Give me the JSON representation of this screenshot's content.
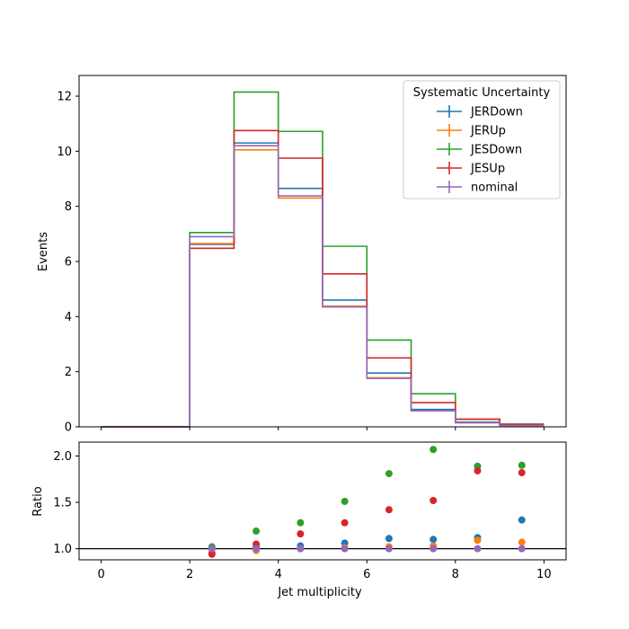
{
  "chart_data": [
    {
      "type": "step",
      "ylabel": "Events",
      "xlim": [
        -0.5,
        10.5
      ],
      "ylim": [
        0,
        12.75
      ],
      "yticks": [
        0,
        2,
        4,
        6,
        8,
        10,
        12
      ],
      "bin_edges": [
        0,
        1,
        2,
        3,
        4,
        5,
        6,
        7,
        8,
        9,
        10
      ],
      "legend": {
        "title": "Systematic Uncertainty",
        "placement": "upper right"
      },
      "series": [
        {
          "name": "JERDown",
          "color": "#1f77b4",
          "values": [
            0,
            0,
            6.62,
            10.3,
            8.65,
            4.6,
            1.95,
            0.63,
            0.17,
            0.07
          ]
        },
        {
          "name": "JERUp",
          "color": "#ff7f0e",
          "values": [
            0,
            0,
            6.65,
            10.05,
            8.3,
            4.38,
            1.78,
            0.58,
            0.15,
            0.05
          ]
        },
        {
          "name": "JESDown",
          "color": "#2ca02c",
          "values": [
            0,
            0,
            7.05,
            12.15,
            10.72,
            6.55,
            3.15,
            1.2,
            0.27,
            0.1
          ]
        },
        {
          "name": "JESUp",
          "color": "#d62728",
          "values": [
            0,
            0,
            6.48,
            10.75,
            9.75,
            5.55,
            2.5,
            0.88,
            0.28,
            0.09
          ]
        },
        {
          "name": "nominal",
          "color": "#9467bd",
          "values": [
            0,
            0,
            6.9,
            10.2,
            8.38,
            4.35,
            1.76,
            0.58,
            0.15,
            0.05
          ]
        }
      ]
    },
    {
      "type": "scatter",
      "xlabel": "Jet multiplicity",
      "ylabel": "Ratio",
      "xlim": [
        -0.5,
        10.5
      ],
      "ylim": [
        0.88,
        2.15
      ],
      "xticks": [
        0,
        2,
        4,
        6,
        8,
        10
      ],
      "yticks": [
        1.0,
        1.5,
        2.0
      ],
      "reference_line": 1.0,
      "x": [
        2.5,
        3.5,
        4.5,
        5.5,
        6.5,
        7.5,
        8.5,
        9.5
      ],
      "series": [
        {
          "name": "JERDown",
          "color": "#1f77b4",
          "values": [
            0.96,
            1.02,
            1.03,
            1.06,
            1.11,
            1.1,
            1.12,
            1.31
          ]
        },
        {
          "name": "JERUp",
          "color": "#ff7f0e",
          "values": [
            0.96,
            0.98,
            1.0,
            1.01,
            1.02,
            1.03,
            1.09,
            1.07
          ]
        },
        {
          "name": "JESDown",
          "color": "#2ca02c",
          "values": [
            1.02,
            1.19,
            1.28,
            1.51,
            1.81,
            2.07,
            1.89,
            1.9
          ]
        },
        {
          "name": "JESUp",
          "color": "#d62728",
          "values": [
            0.94,
            1.05,
            1.16,
            1.28,
            1.42,
            1.52,
            1.84,
            1.82
          ]
        },
        {
          "name": "nominal",
          "color": "#9467bd",
          "values": [
            1.0,
            1.0,
            1.0,
            1.0,
            1.0,
            1.0,
            1.0,
            1.0
          ]
        }
      ]
    }
  ]
}
